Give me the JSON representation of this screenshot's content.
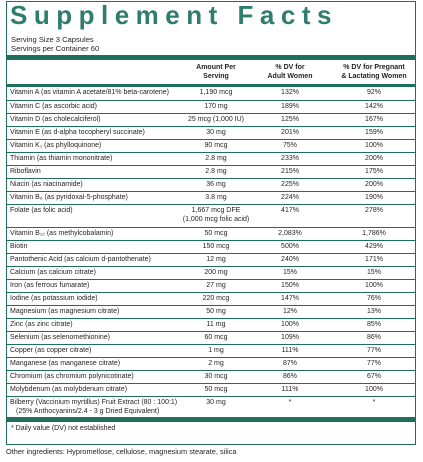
{
  "title": "Supplement Facts",
  "serving_size": "Serving Size 3 Capsules",
  "servings_per_container": "Servings per Container 60",
  "headers": {
    "amount": [
      "Amount Per",
      "Serving"
    ],
    "adult": [
      "% DV for",
      "Adult Women"
    ],
    "pregnant": [
      "% DV for Pregnant",
      "& Lactating Women"
    ]
  },
  "rows": [
    {
      "name": "Vitamin A (as vitamin A acetate/81% beta-carotene)",
      "amount": "1,190 mcg",
      "adult": "132%",
      "pregnant": "92%"
    },
    {
      "name": "Vitamin C (as ascorbic acid)",
      "amount": "170 mg",
      "adult": "189%",
      "pregnant": "142%"
    },
    {
      "name": "Vitamin D (as cholecalciferol)",
      "amount": "25 mcg (1,000 IU)",
      "adult": "125%",
      "pregnant": "167%"
    },
    {
      "name": "Vitamin E (as d-alpha tocopheryl succinate)",
      "amount": "30 mg",
      "adult": "201%",
      "pregnant": "159%"
    },
    {
      "name": "Vitamin K₁ (as phylloquinone)",
      "amount": "90 mcg",
      "adult": "75%",
      "pregnant": "100%"
    },
    {
      "name": "Thiamin (as thiamin mononitrate)",
      "amount": "2.8 mg",
      "adult": "233%",
      "pregnant": "200%"
    },
    {
      "name": "Riboflavin",
      "amount": "2.8 mg",
      "adult": "215%",
      "pregnant": "175%"
    },
    {
      "name": "Niacin (as niacinamide)",
      "amount": "36 mg",
      "adult": "225%",
      "pregnant": "200%"
    },
    {
      "name": "Vitamin B₆ (as pyridoxal-5-phosphate)",
      "amount": "3.8 mg",
      "adult": "224%",
      "pregnant": "190%"
    },
    {
      "name": "Folate (as folic acid)",
      "amount": "1,667 mcg DFE",
      "amount2": "(1,000 mcg folic acid)",
      "adult": "417%",
      "pregnant": "278%"
    },
    {
      "name": "Vitamin B₁₂ (as methylcobalamin)",
      "amount": "50 mcg",
      "adult": "2,083%",
      "pregnant": "1,786%"
    },
    {
      "name": "Biotin",
      "amount": "150 mcg",
      "adult": "500%",
      "pregnant": "429%"
    },
    {
      "name": "Pantothenic Acid (as calcium d-pantothenate)",
      "amount": "12 mg",
      "adult": "240%",
      "pregnant": "171%"
    },
    {
      "name": "Calcium (as calcium citrate)",
      "amount": "200 mg",
      "adult": "15%",
      "pregnant": "15%"
    },
    {
      "name": "Iron (as ferrous fumarate)",
      "amount": "27 mg",
      "adult": "150%",
      "pregnant": "100%"
    },
    {
      "name": "Iodine (as potassium iodide)",
      "amount": "220 mcg",
      "adult": "147%",
      "pregnant": "76%"
    },
    {
      "name": "Magnesium (as magnesium citrate)",
      "amount": "50 mg",
      "adult": "12%",
      "pregnant": "13%"
    },
    {
      "name": "Zinc (as zinc citrate)",
      "amount": "11 mg",
      "adult": "100%",
      "pregnant": "85%"
    },
    {
      "name": "Selenium (as selenomethionine)",
      "amount": "60 mcg",
      "adult": "109%",
      "pregnant": "86%"
    },
    {
      "name": "Copper (as copper citrate)",
      "amount": "1 mg",
      "adult": "111%",
      "pregnant": "77%"
    },
    {
      "name": "Manganese (as manganese citrate)",
      "amount": "2 mg",
      "adult": "87%",
      "pregnant": "77%"
    },
    {
      "name": "Chromium (as chromium polynicotinate)",
      "amount": "30 mcg",
      "adult": "86%",
      "pregnant": "67%"
    },
    {
      "name": "Molybdenum (as molybdenum citrate)",
      "amount": "50 mcg",
      "adult": "111%",
      "pregnant": "100%"
    },
    {
      "name": "Bilberry (Vaccinium myrtillus) Fruit Extract (80 : 100:1)",
      "name2": "(25% Anthocyanins/2.4 - 3 g Dried Equivalent)",
      "amount": "30 mg",
      "adult": "*",
      "pregnant": "*"
    }
  ],
  "footnote": "* Daily value (DV) not established",
  "other_ingredients": "Other ingredients: Hypromellose, cellulose, magnesium stearate, silica",
  "colors": {
    "accent": "#2f7d6d",
    "rule": "#1f6e5e",
    "text": "#231f20"
  }
}
